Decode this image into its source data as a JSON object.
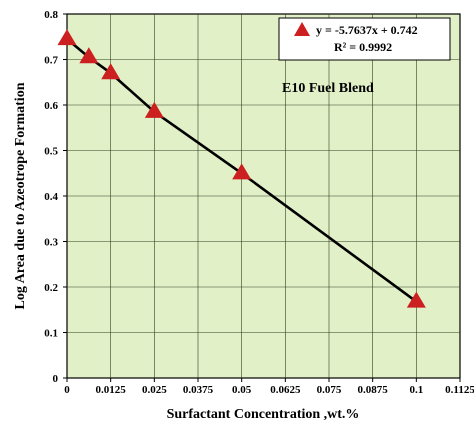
{
  "chart_data": {
    "type": "scatter",
    "xlabel": "Surfactant Concentration ,wt.%",
    "ylabel": "Log Area due to Azeotrope Formation",
    "xlim": [
      0,
      0.1125
    ],
    "ylim": [
      0,
      0.8
    ],
    "x_ticks": [
      0,
      0.0125,
      0.025,
      0.0375,
      0.05,
      0.0625,
      0.075,
      0.0875,
      0.1,
      0.1125
    ],
    "x_tick_labels": [
      "0",
      "0.0125",
      "0.025",
      "0.0375",
      "0.05",
      "0.0625",
      "0.075",
      "0.0875",
      "0.1",
      "0.1125"
    ],
    "y_ticks": [
      0,
      0.1,
      0.2,
      0.3,
      0.4,
      0.5,
      0.6,
      0.7,
      0.8
    ],
    "y_tick_labels": [
      "0",
      "0.1",
      "0.2",
      "0.3",
      "0.4",
      "0.5",
      "0.6",
      "0.7",
      "0.8"
    ],
    "grid": true,
    "background_color": "#e2f0c8",
    "grid_color": "#2f3f1f",
    "series": [
      {
        "marker": "triangle",
        "color": "#cc1f1f",
        "x": [
          0,
          0.00625,
          0.0125,
          0.025,
          0.05,
          0.1
        ],
        "y": [
          0.745,
          0.705,
          0.67,
          0.585,
          0.45,
          0.168
        ]
      }
    ],
    "fit_line": {
      "color": "#000000",
      "x": [
        0,
        0.00625,
        0.0125,
        0.025,
        0.05,
        0.1
      ],
      "y": [
        0.745,
        0.705,
        0.67,
        0.585,
        0.45,
        0.168
      ]
    },
    "legend": {
      "position": "top-right",
      "equation": "y = -5.7637x + 0.742",
      "r2": "R² = 0.9992"
    },
    "annotation": "E10 Fuel Blend"
  }
}
